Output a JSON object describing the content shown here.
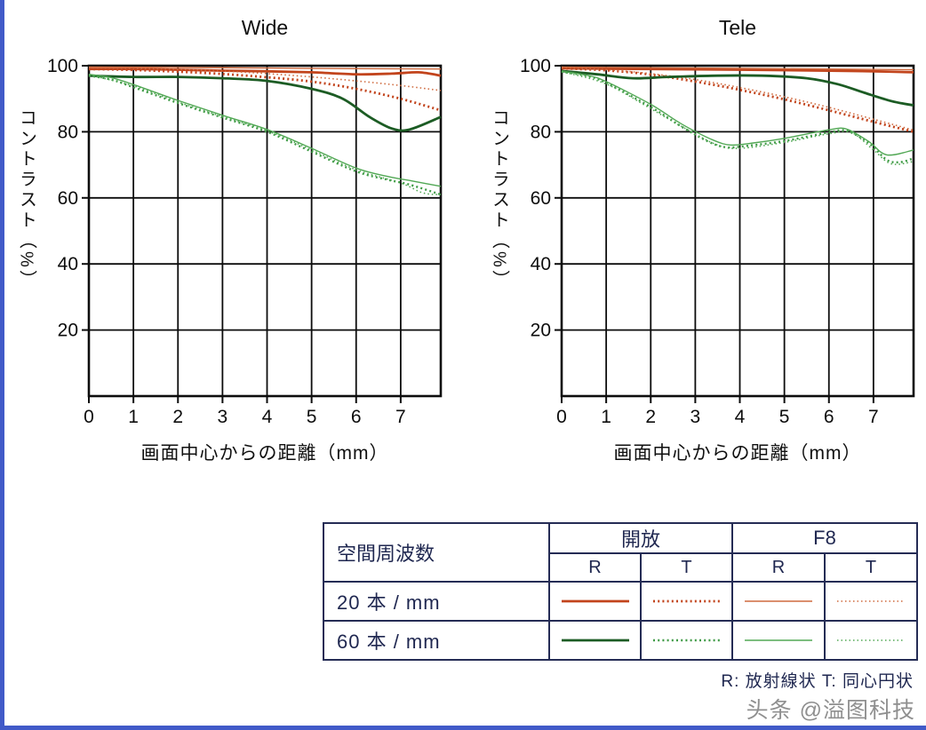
{
  "page": {
    "watermark": "头条 @溢图科技",
    "footnote": "R: 放射線状  T: 同心円状",
    "frame_color": "#415ac8",
    "background": "#ffffff"
  },
  "styles": {
    "open20R": {
      "color": "#c2441c",
      "width": 2.8,
      "dash": ""
    },
    "open20T": {
      "color": "#c2441c",
      "width": 2.8,
      "dash": "2 3.2"
    },
    "f8_20R": {
      "color": "#cf6a3e",
      "width": 1.4,
      "dash": ""
    },
    "f8_20T": {
      "color": "#cf6a3e",
      "width": 1.6,
      "dash": "1.5 3"
    },
    "open60R": {
      "color": "#1c5c24",
      "width": 2.8,
      "dash": ""
    },
    "open60T": {
      "color": "#3f9b46",
      "width": 2.4,
      "dash": "2 3.2"
    },
    "f8_60R": {
      "color": "#52a855",
      "width": 1.4,
      "dash": ""
    },
    "f8_60T": {
      "color": "#52a855",
      "width": 1.6,
      "dash": "1.5 3"
    }
  },
  "legend": {
    "title": "空間周波数",
    "groups": [
      "開放",
      "F8"
    ],
    "sub": [
      "R",
      "T",
      "R",
      "T"
    ],
    "rows": [
      {
        "label": "20 本 / mm",
        "samples": [
          "open20R",
          "open20T",
          "f8_20R",
          "f8_20T"
        ]
      },
      {
        "label": "60 本 / mm",
        "samples": [
          "open60R",
          "open60T",
          "f8_60R",
          "f8_60T"
        ]
      }
    ]
  },
  "chart_data": [
    {
      "type": "line",
      "title": "Wide",
      "xlabel": "画面中心からの距離（mm）",
      "ylabel": "コントラスト（%）",
      "xlim": [
        0,
        7.9
      ],
      "ylim": [
        0,
        100
      ],
      "xticks": [
        0,
        1,
        2,
        3,
        4,
        5,
        6,
        7
      ],
      "yticks": [
        100,
        80,
        60,
        40,
        20
      ],
      "grid": true,
      "series": [
        {
          "name": "20hon-kaiho-R",
          "style": "open20R",
          "points": [
            [
              0,
              99
            ],
            [
              1,
              99
            ],
            [
              2,
              98.8
            ],
            [
              3,
              98.5
            ],
            [
              4,
              98.3
            ],
            [
              5,
              98
            ],
            [
              6,
              97.4
            ],
            [
              6.8,
              97.6
            ],
            [
              7.4,
              98
            ],
            [
              7.9,
              97
            ]
          ]
        },
        {
          "name": "20hon-kaiho-T",
          "style": "open20T",
          "points": [
            [
              0,
              99
            ],
            [
              1,
              98.7
            ],
            [
              2,
              98.2
            ],
            [
              3,
              97.5
            ],
            [
              4,
              96.5
            ],
            [
              5,
              95.2
            ],
            [
              6,
              93
            ],
            [
              7,
              90
            ],
            [
              7.9,
              86.5
            ]
          ]
        },
        {
          "name": "20hon-F8-R",
          "style": "f8_20R",
          "points": [
            [
              0,
              99.6
            ],
            [
              2,
              99.5
            ],
            [
              4,
              99.3
            ],
            [
              6,
              99.1
            ],
            [
              7.9,
              99
            ]
          ]
        },
        {
          "name": "20hon-F8-T",
          "style": "f8_20T",
          "points": [
            [
              0,
              99.4
            ],
            [
              1,
              99.2
            ],
            [
              2,
              98.9
            ],
            [
              3,
              98.4
            ],
            [
              4,
              97.6
            ],
            [
              5,
              96.6
            ],
            [
              6,
              95.4
            ],
            [
              7,
              94
            ],
            [
              7.9,
              92.5
            ]
          ]
        },
        {
          "name": "60hon-kaiho-R",
          "style": "open60R",
          "points": [
            [
              0,
              97
            ],
            [
              1,
              96.6
            ],
            [
              2,
              96.6
            ],
            [
              3,
              96.2
            ],
            [
              4,
              95.4
            ],
            [
              5,
              93
            ],
            [
              5.7,
              90
            ],
            [
              6.3,
              84.5
            ],
            [
              6.8,
              81
            ],
            [
              7.2,
              80.7
            ],
            [
              7.9,
              84.5
            ]
          ]
        },
        {
          "name": "60hon-kaiho-T",
          "style": "open60T",
          "points": [
            [
              0,
              97
            ],
            [
              0.5,
              95.8
            ],
            [
              1,
              93.5
            ],
            [
              2,
              88.7
            ],
            [
              3,
              84.3
            ],
            [
              4,
              80
            ],
            [
              5,
              74
            ],
            [
              6,
              68
            ],
            [
              6.7,
              65.5
            ],
            [
              7.2,
              64
            ],
            [
              7.9,
              61
            ]
          ]
        },
        {
          "name": "60hon-F8-R",
          "style": "f8_60R",
          "points": [
            [
              0,
              97.4
            ],
            [
              0.5,
              96.4
            ],
            [
              1,
              94.3
            ],
            [
              2,
              89.5
            ],
            [
              3,
              85
            ],
            [
              4,
              80.7
            ],
            [
              5,
              75
            ],
            [
              6,
              69
            ],
            [
              6.7,
              66.5
            ],
            [
              7.3,
              65
            ],
            [
              7.9,
              63.5
            ]
          ]
        },
        {
          "name": "60hon-F8-T",
          "style": "f8_60T",
          "points": [
            [
              0,
              97.2
            ],
            [
              1,
              93.9
            ],
            [
              2,
              89
            ],
            [
              3,
              84.6
            ],
            [
              4,
              80.3
            ],
            [
              5,
              74.5
            ],
            [
              6,
              68.5
            ],
            [
              7,
              64.5
            ],
            [
              7.5,
              61.5
            ],
            [
              7.9,
              61
            ]
          ]
        }
      ]
    },
    {
      "type": "line",
      "title": "Tele",
      "xlabel": "画面中心からの距離（mm）",
      "ylabel": "コントラスト（%）",
      "xlim": [
        0,
        7.9
      ],
      "ylim": [
        0,
        100
      ],
      "xticks": [
        0,
        1,
        2,
        3,
        4,
        5,
        6,
        7
      ],
      "yticks": [
        100,
        80,
        60,
        40,
        20
      ],
      "grid": true,
      "series": [
        {
          "name": "20hon-kaiho-R",
          "style": "open20R",
          "points": [
            [
              0,
              99.2
            ],
            [
              2,
              99
            ],
            [
              4,
              98.8
            ],
            [
              6,
              98.5
            ],
            [
              7,
              98.3
            ],
            [
              7.9,
              98
            ]
          ]
        },
        {
          "name": "20hon-kaiho-T",
          "style": "open20T",
          "points": [
            [
              0,
              99.2
            ],
            [
              1,
              98.6
            ],
            [
              2,
              97.3
            ],
            [
              3,
              95.2
            ],
            [
              4,
              92.7
            ],
            [
              5,
              89.8
            ],
            [
              6,
              86.5
            ],
            [
              7,
              83
            ],
            [
              7.9,
              80
            ]
          ]
        },
        {
          "name": "20hon-F8-R",
          "style": "f8_20R",
          "points": [
            [
              0,
              99.6
            ],
            [
              3,
              99.3
            ],
            [
              6,
              99
            ],
            [
              7.9,
              98.8
            ]
          ]
        },
        {
          "name": "20hon-F8-T",
          "style": "f8_20T",
          "points": [
            [
              0,
              99.4
            ],
            [
              1,
              98.8
            ],
            [
              2,
              97.6
            ],
            [
              3,
              95.8
            ],
            [
              4,
              93.4
            ],
            [
              5,
              90.6
            ],
            [
              6,
              87.4
            ],
            [
              7,
              83.8
            ],
            [
              7.9,
              80.5
            ]
          ]
        },
        {
          "name": "60hon-kaiho-R",
          "style": "open60R",
          "points": [
            [
              0,
              98.4
            ],
            [
              0.8,
              97.4
            ],
            [
              1.6,
              96.2
            ],
            [
              2.4,
              96.6
            ],
            [
              3.5,
              97
            ],
            [
              4.5,
              97
            ],
            [
              5.5,
              96.2
            ],
            [
              6.2,
              94.4
            ],
            [
              6.8,
              91.8
            ],
            [
              7.4,
              89.3
            ],
            [
              7.9,
              88
            ]
          ]
        },
        {
          "name": "60hon-kaiho-T",
          "style": "open60T",
          "points": [
            [
              0,
              98.2
            ],
            [
              0.6,
              96.8
            ],
            [
              1,
              94.8
            ],
            [
              2,
              87.5
            ],
            [
              2.7,
              81.5
            ],
            [
              3.3,
              77
            ],
            [
              3.7,
              75.3
            ],
            [
              4.2,
              75.8
            ],
            [
              5,
              77.2
            ],
            [
              6,
              79.8
            ],
            [
              6.4,
              80.3
            ],
            [
              6.9,
              76.5
            ],
            [
              7.3,
              71.5
            ],
            [
              7.6,
              70.8
            ],
            [
              7.9,
              72
            ]
          ]
        },
        {
          "name": "60hon-F8-R",
          "style": "f8_60R",
          "points": [
            [
              0,
              98.4
            ],
            [
              0.6,
              97
            ],
            [
              1,
              95.2
            ],
            [
              2,
              88.3
            ],
            [
              2.7,
              82.3
            ],
            [
              3.4,
              77.5
            ],
            [
              3.8,
              76
            ],
            [
              4.3,
              76.6
            ],
            [
              5,
              78
            ],
            [
              6,
              80.6
            ],
            [
              6.4,
              80.8
            ],
            [
              6.9,
              77
            ],
            [
              7.3,
              73
            ],
            [
              7.9,
              74.5
            ]
          ]
        },
        {
          "name": "60hon-F8-T",
          "style": "f8_60T",
          "points": [
            [
              0,
              98.2
            ],
            [
              1,
              94.5
            ],
            [
              2,
              87
            ],
            [
              2.8,
              80.8
            ],
            [
              3.5,
              76
            ],
            [
              4,
              75
            ],
            [
              5,
              76.8
            ],
            [
              6,
              79.4
            ],
            [
              6.5,
              79.8
            ],
            [
              7,
              74.5
            ],
            [
              7.4,
              70.3
            ],
            [
              7.9,
              71
            ]
          ]
        }
      ]
    }
  ]
}
